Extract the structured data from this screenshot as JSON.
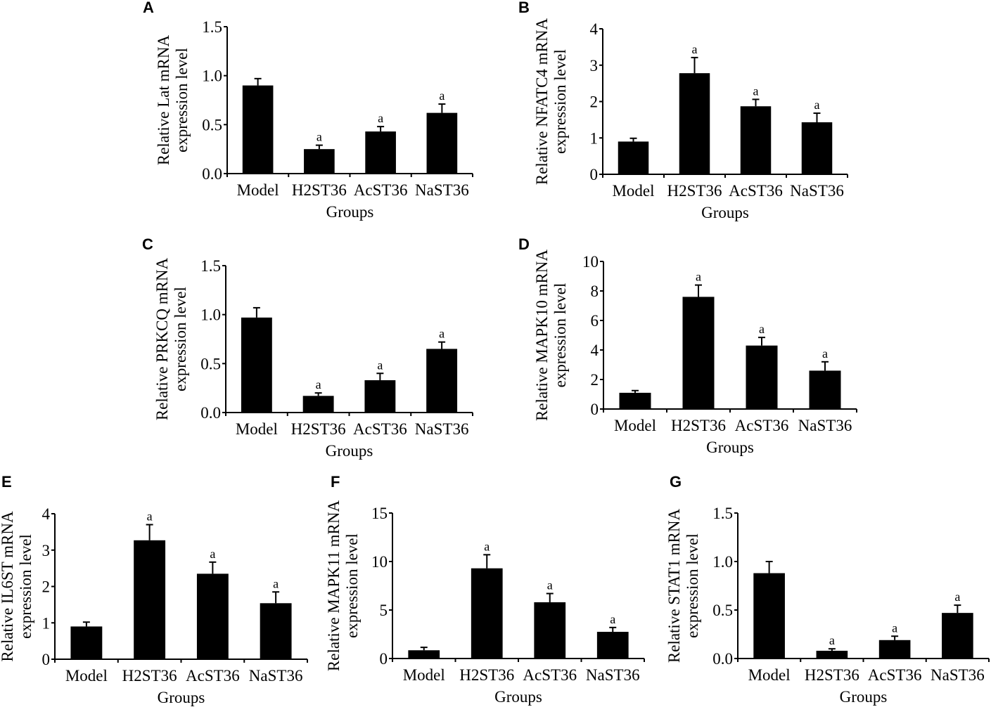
{
  "figure": {
    "panels_order": [
      "A",
      "B",
      "C",
      "D",
      "E",
      "F",
      "G"
    ]
  },
  "chart_data": [
    {
      "panel": "A",
      "type": "bar",
      "title": "",
      "categories": [
        "Model",
        "H2ST36",
        "AcST36",
        "NaST36"
      ],
      "values": [
        0.9,
        0.25,
        0.43,
        0.62
      ],
      "error_upper": [
        0.97,
        0.29,
        0.48,
        0.71
      ],
      "annotations": [
        "",
        "a",
        "a",
        "a"
      ],
      "xlabel": "Groups",
      "ylabel": [
        "Relative Lat mRNA",
        "expression level"
      ],
      "ylim": [
        0,
        1.5
      ],
      "yticks": [
        0,
        0.5,
        1.0,
        1.5
      ],
      "ytick_labels": [
        "0.0",
        "0.5",
        "1.0",
        "1.5"
      ],
      "grid": false,
      "bar_color": "#000000"
    },
    {
      "panel": "B",
      "type": "bar",
      "title": "",
      "categories": [
        "Model",
        "H2ST36",
        "AcST36",
        "NaST36"
      ],
      "values": [
        0.9,
        2.78,
        1.87,
        1.43
      ],
      "error_upper": [
        0.99,
        3.21,
        2.06,
        1.68
      ],
      "annotations": [
        "",
        "a",
        "a",
        "a"
      ],
      "xlabel": "Groups",
      "ylabel": [
        "Relative NFATC4 mRNA",
        "expression level"
      ],
      "ylim": [
        0,
        4
      ],
      "yticks": [
        0,
        1,
        2,
        3,
        4
      ],
      "ytick_labels": [
        "0",
        "1",
        "2",
        "3",
        "4"
      ],
      "grid": false,
      "bar_color": "#000000"
    },
    {
      "panel": "C",
      "type": "bar",
      "title": "",
      "categories": [
        "Model",
        "H2ST36",
        "AcST36",
        "NaST36"
      ],
      "values": [
        0.97,
        0.17,
        0.33,
        0.65
      ],
      "error_upper": [
        1.07,
        0.2,
        0.4,
        0.72
      ],
      "annotations": [
        "",
        "a",
        "a",
        "a"
      ],
      "xlabel": "Groups",
      "ylabel": [
        "Relative PRKCQ mRNA",
        "expression level"
      ],
      "ylim": [
        0,
        1.5
      ],
      "yticks": [
        0,
        0.5,
        1.0,
        1.5
      ],
      "ytick_labels": [
        "0.0",
        "0.5",
        "1.0",
        "1.5"
      ],
      "grid": false,
      "bar_color": "#000000"
    },
    {
      "panel": "D",
      "type": "bar",
      "title": "",
      "categories": [
        "Model",
        "H2ST36",
        "AcST36",
        "NaST36"
      ],
      "values": [
        1.1,
        7.6,
        4.3,
        2.6
      ],
      "error_upper": [
        1.25,
        8.4,
        4.85,
        3.2
      ],
      "annotations": [
        "",
        "a",
        "a",
        "a"
      ],
      "xlabel": "Groups",
      "ylabel": [
        "Relative MAPK10 mRNA",
        "expression level"
      ],
      "ylim": [
        0,
        10
      ],
      "yticks": [
        0,
        2,
        4,
        6,
        8,
        10
      ],
      "ytick_labels": [
        "0",
        "2",
        "4",
        "6",
        "8",
        "10"
      ],
      "grid": false,
      "bar_color": "#000000"
    },
    {
      "panel": "E",
      "type": "bar",
      "title": "",
      "categories": [
        "Model",
        "H2ST36",
        "AcST36",
        "NaST36"
      ],
      "values": [
        0.9,
        3.27,
        2.35,
        1.54
      ],
      "error_upper": [
        1.02,
        3.7,
        2.67,
        1.85
      ],
      "annotations": [
        "",
        "a",
        "a",
        "a"
      ],
      "xlabel": "Groups",
      "ylabel": [
        "Relative IL6ST mRNA",
        "expression level"
      ],
      "ylim": [
        0,
        4
      ],
      "yticks": [
        0,
        1,
        2,
        3,
        4
      ],
      "ytick_labels": [
        "0",
        "1",
        "2",
        "3",
        "4"
      ],
      "grid": false,
      "bar_color": "#000000"
    },
    {
      "panel": "F",
      "type": "bar",
      "title": "",
      "categories": [
        "Model",
        "H2ST36",
        "AcST36",
        "NaST36"
      ],
      "values": [
        0.85,
        9.3,
        5.8,
        2.75
      ],
      "error_upper": [
        1.15,
        10.7,
        6.7,
        3.2
      ],
      "annotations": [
        "",
        "a",
        "a",
        "a"
      ],
      "xlabel": "Groups",
      "ylabel": [
        "Relative MAPK11 mRNA",
        "expression level"
      ],
      "ylim": [
        0,
        15
      ],
      "yticks": [
        0,
        5,
        10,
        15
      ],
      "ytick_labels": [
        "0",
        "5",
        "10",
        "15"
      ],
      "grid": false,
      "bar_color": "#000000"
    },
    {
      "panel": "G",
      "type": "bar",
      "title": "",
      "categories": [
        "Model",
        "H2ST36",
        "AcST36",
        "NaST36"
      ],
      "values": [
        0.88,
        0.08,
        0.19,
        0.47
      ],
      "error_upper": [
        1.0,
        0.1,
        0.23,
        0.55
      ],
      "annotations": [
        "",
        "a",
        "a",
        "a"
      ],
      "xlabel": "Groups",
      "ylabel": [
        "Relative STAT1 mRNA",
        "expression level"
      ],
      "ylim": [
        0,
        1.5
      ],
      "yticks": [
        0,
        0.5,
        1.0,
        1.5
      ],
      "ytick_labels": [
        "0.0",
        "0.5",
        "1.0",
        "1.5"
      ],
      "grid": false,
      "bar_color": "#000000"
    }
  ]
}
